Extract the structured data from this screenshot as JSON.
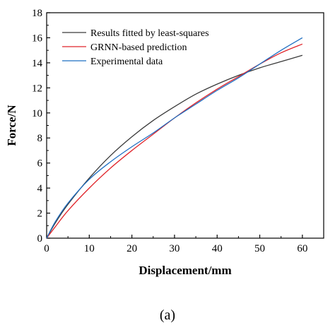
{
  "chart_data": {
    "type": "line",
    "xlabel": "Displacement/mm",
    "ylabel": "Force/N",
    "xlim": [
      0,
      65
    ],
    "ylim": [
      0,
      18
    ],
    "xticks": [
      0,
      10,
      20,
      30,
      40,
      50,
      60
    ],
    "yticks": [
      0,
      2,
      4,
      6,
      8,
      10,
      12,
      14,
      16,
      18
    ],
    "legend_position": "top-left",
    "caption": "(a)",
    "series": [
      {
        "name": "Results fitted by least-squares",
        "color": "#3a3a3a",
        "x": [
          0,
          2,
          5,
          10,
          15,
          20,
          25,
          30,
          35,
          40,
          45,
          50,
          55,
          60
        ],
        "y": [
          0,
          1.2,
          2.7,
          4.8,
          6.6,
          8.1,
          9.4,
          10.5,
          11.5,
          12.3,
          13.0,
          13.6,
          14.1,
          14.6
        ]
      },
      {
        "name": "GRNN-based prediction",
        "color": "#e0242a",
        "x": [
          0,
          2,
          5,
          10,
          15,
          20,
          25,
          30,
          35,
          40,
          45,
          50,
          55,
          60
        ],
        "y": [
          0,
          0.9,
          2.2,
          4.0,
          5.6,
          7.0,
          8.3,
          9.6,
          10.8,
          11.9,
          12.9,
          13.9,
          14.8,
          15.5
        ]
      },
      {
        "name": "Experimental data",
        "color": "#1f6fc2",
        "x": [
          0,
          2,
          5,
          10,
          15,
          20,
          25,
          30,
          35,
          40,
          45,
          50,
          55,
          60
        ],
        "y": [
          0,
          1.3,
          2.8,
          4.7,
          6.1,
          7.3,
          8.4,
          9.6,
          10.7,
          11.8,
          12.8,
          13.9,
          15.0,
          16.0
        ]
      }
    ]
  }
}
